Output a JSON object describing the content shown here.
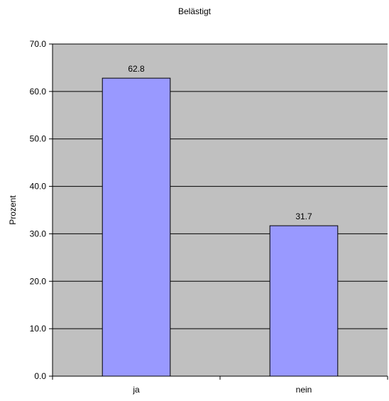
{
  "chart_data": {
    "type": "bar",
    "title": "Belästigt",
    "xlabel": "",
    "ylabel": "Prozent",
    "categories": [
      "ja",
      "nein"
    ],
    "values": [
      62.8,
      31.7
    ],
    "value_labels": [
      "62.8",
      "31.7"
    ],
    "ylim": [
      0,
      70
    ],
    "yticks": [
      0,
      10,
      20,
      30,
      40,
      50,
      60,
      70
    ],
    "ytick_labels": [
      "0.0",
      "10.0",
      "20.0",
      "30.0",
      "40.0",
      "50.0",
      "60.0",
      "70.0"
    ],
    "grid": true,
    "legend": "none"
  },
  "colors": {
    "plot_background": "#c0c0c0",
    "bar_fill": "#9999ff",
    "bar_stroke": "#000000",
    "grid": "#000000",
    "axis": "#000000"
  }
}
